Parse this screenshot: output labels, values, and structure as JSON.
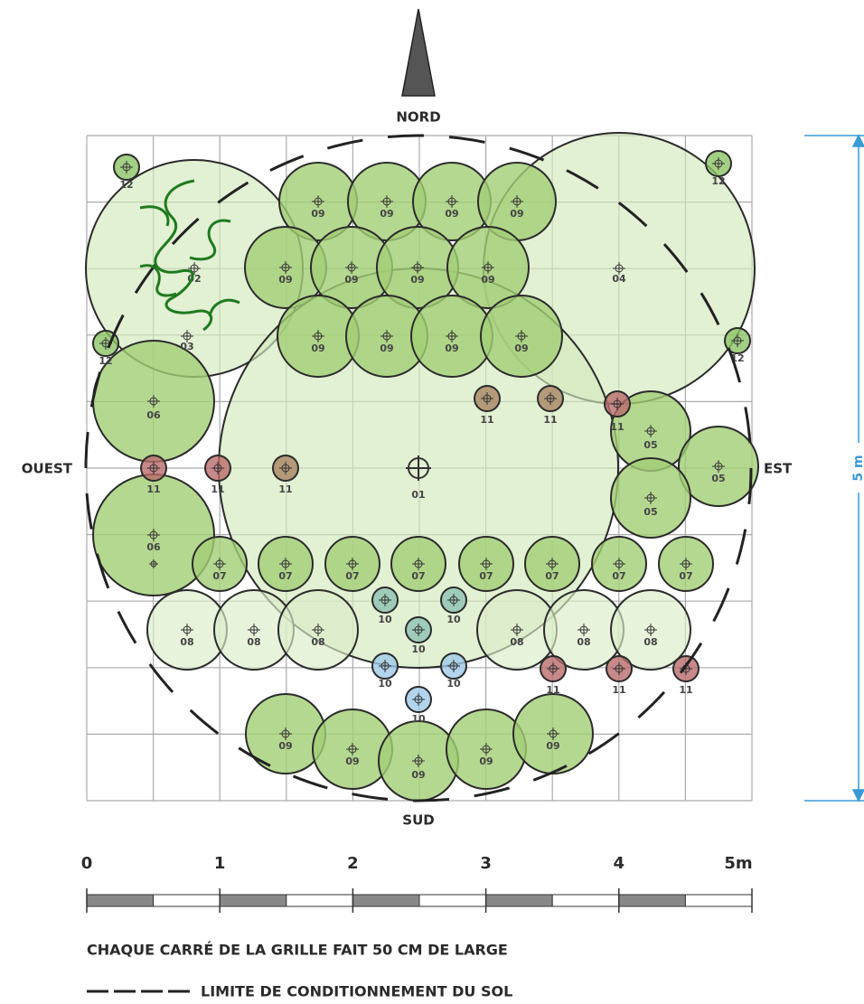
{
  "compass": {
    "north": "NORD",
    "south": "SUD",
    "east": "EST",
    "west": "OUEST"
  },
  "dimension": "5 m",
  "scale": {
    "labels": [
      "0",
      "1",
      "2",
      "3",
      "4",
      "5m"
    ]
  },
  "caption": "CHAQUE CARRÉ DE LA GRILLE FAIT 50 CM DE LARGE",
  "legend": {
    "label": "LIMITE DE CONDITIONNEMENT DU SOL"
  },
  "plants": [
    "02",
    "04",
    "01",
    "09",
    "09",
    "09",
    "09",
    "09",
    "09",
    "09",
    "09",
    "09",
    "09",
    "09",
    "09",
    "09",
    "09",
    "09",
    "09",
    "09",
    "06",
    "06",
    "05",
    "05",
    "05",
    "07",
    "07",
    "07",
    "07",
    "07",
    "07",
    "07",
    "07",
    "08",
    "08",
    "08",
    "08",
    "08",
    "08",
    "03",
    "10",
    "10",
    "10",
    "10",
    "10",
    "10",
    "11",
    "11",
    "11",
    "11",
    "11",
    "11",
    "11",
    "11",
    "11",
    "12",
    "12",
    "12",
    "12"
  ]
}
